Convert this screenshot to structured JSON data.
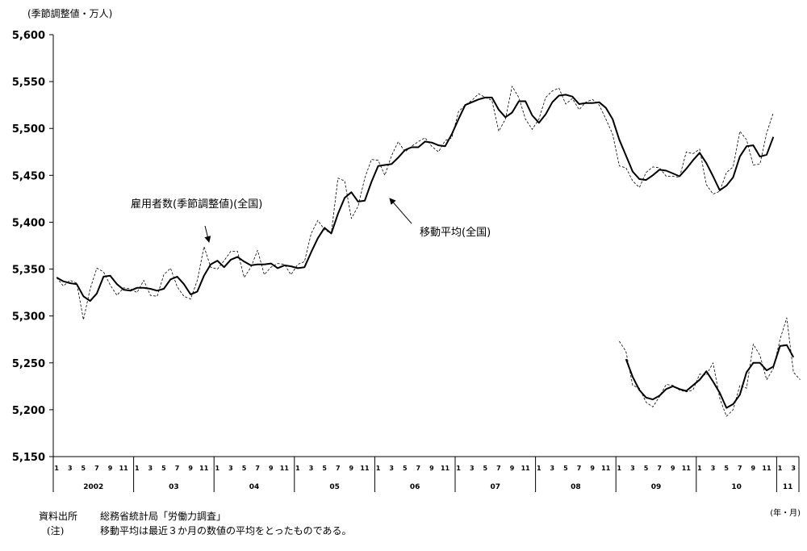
{
  "unit_note": "(季節調整値・万人)",
  "x_unit_note": "(年・月)",
  "source_label": "資料出所",
  "source_text": "総務省統計局「労働力調査」",
  "note_label": "(注)",
  "note_text": "移動平均は最近３か月の数値の平均をとったものである。",
  "chart_data": {
    "type": "line",
    "ylim": [
      5150,
      5600
    ],
    "yticks": [
      "5,150",
      "5,200",
      "5,250",
      "5,300",
      "5,350",
      "5,400",
      "5,450",
      "5,500",
      "5,550",
      "5,600"
    ],
    "month_tick_labels": [
      "1",
      "3",
      "5",
      "7",
      "9",
      "11"
    ],
    "year_labels": [
      "2002",
      "03",
      "04",
      "05",
      "06",
      "07",
      "08",
      "09",
      "10",
      "11"
    ],
    "annotations": [
      {
        "text": "雇用者数(季節調整値)(全国)"
      },
      {
        "text": "移動平均(全国)"
      }
    ],
    "series": [
      {
        "values": [
          5341,
          5332,
          5338,
          5335,
          5296,
          5329,
          5351,
          5347,
          5333,
          5322,
          5330,
          5329,
          5325,
          5338,
          5322,
          5321,
          5344,
          5351,
          5331,
          5321,
          5318,
          5338,
          5374,
          5352,
          5350,
          5359,
          5369,
          5369,
          5341,
          5352,
          5370,
          5344,
          5352,
          5356,
          5355,
          5344,
          5355,
          5358,
          5388,
          5402,
          5392,
          5388,
          5447,
          5444,
          5404,
          5417,
          5447,
          5467,
          5466,
          5450,
          5471,
          5486,
          5475,
          5481,
          5486,
          5490,
          5481,
          5475,
          5487,
          5490,
          5518,
          5525,
          5530,
          5537,
          5533,
          5530,
          5497,
          5510,
          5545,
          5533,
          5510,
          5499,
          5510,
          5533,
          5540,
          5543,
          5526,
          5532,
          5520,
          5528,
          5531,
          5525,
          5510,
          5494,
          5460,
          5458,
          5444,
          5437,
          5453,
          5459,
          5458,
          5449,
          5449,
          5448,
          5475,
          5473,
          5478,
          5440,
          5430,
          5433,
          5453,
          5459,
          5497,
          5488,
          5461,
          5462,
          5495,
          5517
        ]
      },
      {
        "values": [
          5341,
          5337,
          5335,
          5334,
          5321,
          5316,
          5324,
          5342,
          5343,
          5334,
          5328,
          5327,
          5330,
          5330,
          5329,
          5327,
          5329,
          5339,
          5342,
          5334,
          5323,
          5326,
          5343,
          5355,
          5359,
          5352,
          5360,
          5363,
          5358,
          5354,
          5355,
          5355,
          5356,
          5351,
          5354,
          5353,
          5351,
          5352,
          5368,
          5383,
          5394,
          5388,
          5409,
          5426,
          5432,
          5422,
          5423,
          5443,
          5460,
          5461,
          5462,
          5469,
          5477,
          5480,
          5480,
          5486,
          5485,
          5482,
          5481,
          5494,
          5510,
          5525,
          5528,
          5531,
          5533,
          5533,
          5520,
          5512,
          5517,
          5529,
          5529,
          5514,
          5506,
          5515,
          5528,
          5535,
          5536,
          5534,
          5526,
          5527,
          5527,
          5528,
          5522,
          5510,
          5488,
          5471,
          5454,
          5446,
          5445,
          5450,
          5456,
          5455,
          5452,
          5449,
          5457,
          5466,
          5474,
          5463,
          5449,
          5434,
          5439,
          5448,
          5470,
          5481,
          5482,
          5470,
          5472,
          5491
        ]
      },
      {
        "values": [
          5273,
          5262,
          5226,
          5223,
          5208,
          5203,
          5214,
          5227,
          5226,
          5221,
          5219,
          5221,
          5238,
          5237,
          5250,
          5212,
          5193,
          5200,
          5226,
          5223,
          5270,
          5258,
          5232,
          5244,
          5275,
          5298,
          5240,
          5232
        ]
      },
      {
        "values": [
          5254,
          5235,
          5221,
          5213,
          5211,
          5215,
          5222,
          5225,
          5222,
          5220,
          5226,
          5232,
          5241,
          5230,
          5218,
          5202,
          5206,
          5216,
          5240,
          5250,
          5250,
          5242,
          5246,
          5268,
          5269,
          5256
        ]
      }
    ]
  }
}
